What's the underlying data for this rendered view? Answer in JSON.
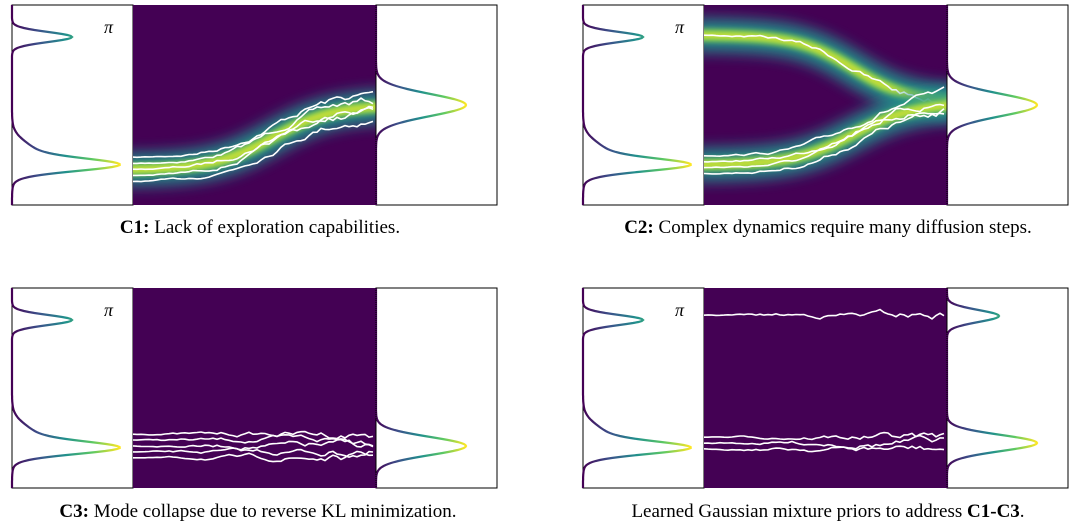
{
  "panels": [
    {
      "symbol": "π",
      "caption": [
        {
          "text": "C1:",
          "bold": true
        },
        {
          "text": " Lack of exploration capabilities.",
          "bold": false
        }
      ]
    },
    {
      "symbol": "π",
      "caption": [
        {
          "text": "C2:",
          "bold": true
        },
        {
          "text": " Complex dynamics require many diffusion steps.",
          "bold": false
        }
      ]
    },
    {
      "symbol": "π",
      "caption": [
        {
          "text": "C3:",
          "bold": true
        },
        {
          "text": " Mode collapse due to reverse KL minimization.",
          "bold": false
        }
      ]
    },
    {
      "symbol": "π",
      "caption": [
        {
          "text": "Learned Gaussian mixture priors to address ",
          "bold": false
        },
        {
          "text": "C1-C3",
          "bold": true
        },
        {
          "text": ".",
          "bold": false
        }
      ]
    }
  ]
}
